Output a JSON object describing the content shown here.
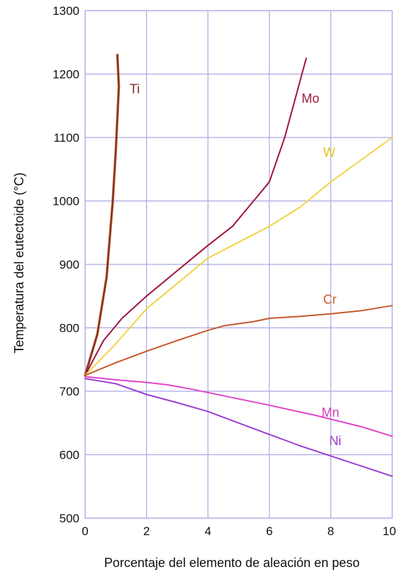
{
  "chart_data": {
    "type": "line",
    "title": "",
    "xlabel": "Porcentaje del elemento de aleación en peso",
    "ylabel": "Temperatura del eutectoide (°C)",
    "xlim": [
      0,
      10
    ],
    "ylim": [
      500,
      1300
    ],
    "xticks": [
      0,
      2,
      4,
      6,
      8,
      10
    ],
    "yticks": [
      500,
      600,
      700,
      800,
      900,
      1000,
      1100,
      1200,
      1300
    ],
    "grid": true,
    "gridColor": "#a9a9e6",
    "series": [
      {
        "name": "Ti",
        "color": "#7a2a1f",
        "accent": "#c8703e",
        "label_at": [
          1.45,
          1170
        ],
        "labelColor": "#7a2a1f",
        "points": [
          [
            0,
            725
          ],
          [
            0.4,
            790
          ],
          [
            0.7,
            880
          ],
          [
            0.9,
            1000
          ],
          [
            1.0,
            1080
          ],
          [
            1.1,
            1180
          ],
          [
            1.05,
            1230
          ]
        ]
      },
      {
        "name": "Mo",
        "color": "#a0173d",
        "label_at": [
          7.05,
          1155
        ],
        "labelColor": "#a0173d",
        "points": [
          [
            0,
            725
          ],
          [
            0.6,
            780
          ],
          [
            1.2,
            815
          ],
          [
            2.0,
            850
          ],
          [
            3.0,
            890
          ],
          [
            4.0,
            930
          ],
          [
            4.8,
            960
          ],
          [
            5.4,
            995
          ],
          [
            6.0,
            1030
          ],
          [
            6.5,
            1100
          ],
          [
            7.2,
            1225
          ]
        ]
      },
      {
        "name": "W",
        "color": "#f1d34a",
        "label_at": [
          7.75,
          1070
        ],
        "labelColor": "#e2c313",
        "points": [
          [
            0,
            725
          ],
          [
            1.0,
            775
          ],
          [
            2.0,
            830
          ],
          [
            3.0,
            870
          ],
          [
            4.0,
            910
          ],
          [
            5.0,
            935
          ],
          [
            6.0,
            960
          ],
          [
            7.0,
            990
          ],
          [
            8.0,
            1030
          ],
          [
            9.0,
            1065
          ],
          [
            10.0,
            1100
          ]
        ]
      },
      {
        "name": "Cr",
        "color": "#c55a2c",
        "label_at": [
          7.75,
          838
        ],
        "labelColor": "#c55a2c",
        "points": [
          [
            0,
            725
          ],
          [
            1.0,
            745
          ],
          [
            2.0,
            763
          ],
          [
            3.0,
            780
          ],
          [
            4.0,
            796
          ],
          [
            4.5,
            803
          ],
          [
            5.5,
            810
          ],
          [
            6.0,
            815
          ],
          [
            7.0,
            818
          ],
          [
            8.0,
            822
          ],
          [
            9.0,
            827
          ],
          [
            10.0,
            835
          ]
        ]
      },
      {
        "name": "Mn",
        "color": "#e046c8",
        "label_at": [
          7.7,
          660
        ],
        "labelColor": "#d63bbd",
        "points": [
          [
            0,
            723
          ],
          [
            1.0,
            718
          ],
          [
            2.0,
            714
          ],
          [
            2.7,
            710
          ],
          [
            3.5,
            703
          ],
          [
            4.5,
            693
          ],
          [
            6.0,
            678
          ],
          [
            7.5,
            662
          ],
          [
            9.0,
            644
          ],
          [
            10.0,
            629
          ]
        ]
      },
      {
        "name": "Ni",
        "color": "#9b3fcf",
        "label_at": [
          7.95,
          615
        ],
        "labelColor": "#9b3fcf",
        "points": [
          [
            0,
            720
          ],
          [
            1.0,
            712
          ],
          [
            2.0,
            695
          ],
          [
            3.0,
            682
          ],
          [
            4.0,
            668
          ],
          [
            5.0,
            650
          ],
          [
            6.0,
            632
          ],
          [
            7.0,
            614
          ],
          [
            8.0,
            598
          ],
          [
            9.0,
            582
          ],
          [
            10.0,
            566
          ]
        ]
      }
    ]
  }
}
